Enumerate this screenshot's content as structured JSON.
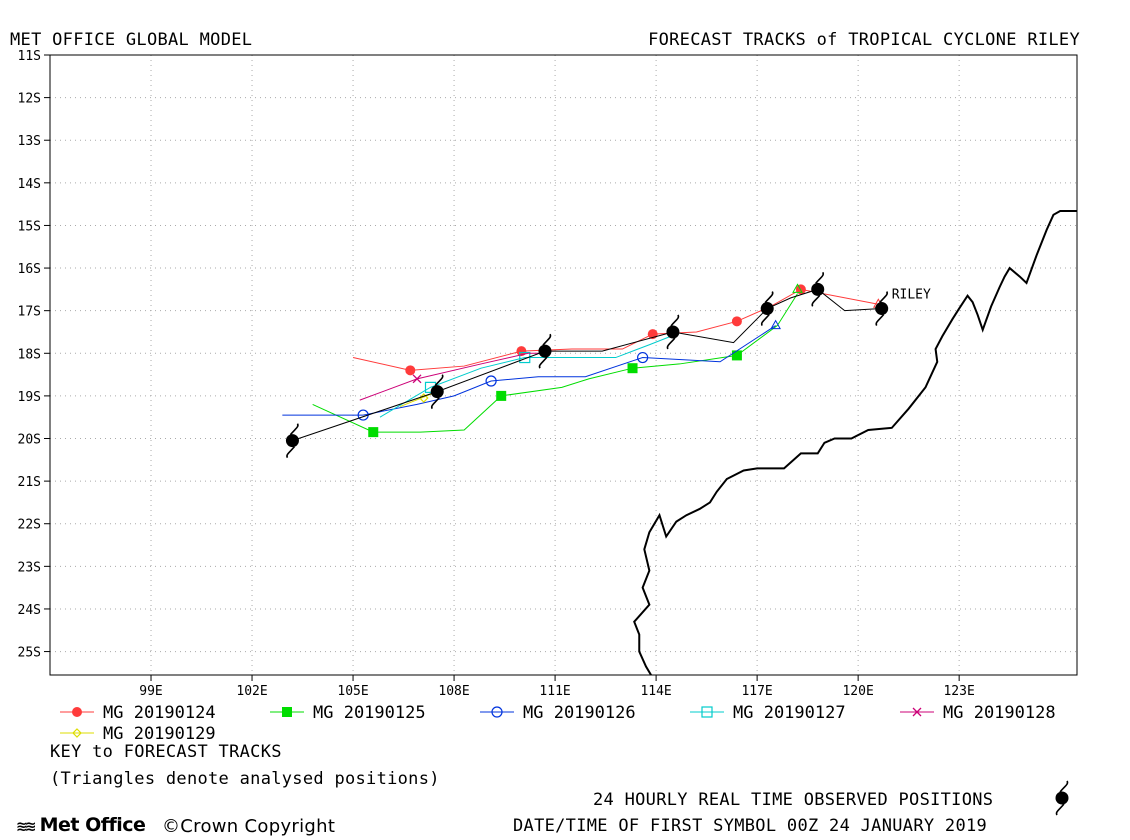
{
  "header": {
    "left_title": "MET OFFICE GLOBAL MODEL",
    "right_title": "FORECAST TRACKS of TROPICAL CYCLONE RILEY"
  },
  "map": {
    "lon_range": [
      96,
      126.5
    ],
    "lat_range": [
      -25.55,
      -11
    ],
    "lon_ticks": [
      {
        "value": 99,
        "label": "99E"
      },
      {
        "value": 102,
        "label": "102E"
      },
      {
        "value": 105,
        "label": "105E"
      },
      {
        "value": 108,
        "label": "108E"
      },
      {
        "value": 111,
        "label": "111E"
      },
      {
        "value": 114,
        "label": "114E"
      },
      {
        "value": 117,
        "label": "117E"
      },
      {
        "value": 120,
        "label": "120E"
      },
      {
        "value": 123,
        "label": "123E"
      }
    ],
    "lat_ticks": [
      {
        "value": -11,
        "label": "11S"
      },
      {
        "value": -12,
        "label": "12S"
      },
      {
        "value": -13,
        "label": "13S"
      },
      {
        "value": -14,
        "label": "14S"
      },
      {
        "value": -15,
        "label": "15S"
      },
      {
        "value": -16,
        "label": "16S"
      },
      {
        "value": -17,
        "label": "17S"
      },
      {
        "value": -18,
        "label": "18S"
      },
      {
        "value": -19,
        "label": "19S"
      },
      {
        "value": -20,
        "label": "20S"
      },
      {
        "value": -21,
        "label": "21S"
      },
      {
        "value": -22,
        "label": "22S"
      },
      {
        "value": -23,
        "label": "23S"
      },
      {
        "value": -24,
        "label": "24S"
      },
      {
        "value": -25,
        "label": "25S"
      }
    ],
    "grid": "dotted",
    "storm_label": "RILEY",
    "coastline": [
      [
        126.8,
        -14.66
      ],
      [
        126.0,
        -14.66
      ],
      [
        125.8,
        -14.75
      ],
      [
        125.6,
        -15.1
      ],
      [
        125.5,
        -15.3
      ],
      [
        125.3,
        -15.7
      ],
      [
        125.0,
        -16.35
      ],
      [
        124.8,
        -16.2
      ],
      [
        124.5,
        -16.0
      ],
      [
        124.35,
        -16.2
      ],
      [
        124.2,
        -16.45
      ],
      [
        123.95,
        -16.9
      ],
      [
        123.7,
        -17.45
      ],
      [
        123.55,
        -17.1
      ],
      [
        123.4,
        -16.8
      ],
      [
        123.25,
        -16.65
      ],
      [
        123.0,
        -16.95
      ],
      [
        122.8,
        -17.2
      ],
      [
        122.5,
        -17.6
      ],
      [
        122.3,
        -17.9
      ],
      [
        122.35,
        -18.2
      ],
      [
        122.0,
        -18.8
      ],
      [
        121.5,
        -19.3
      ],
      [
        121.0,
        -19.75
      ],
      [
        120.3,
        -19.8
      ],
      [
        119.8,
        -20.0
      ],
      [
        119.3,
        -20.0
      ],
      [
        119.0,
        -20.1
      ],
      [
        118.8,
        -20.35
      ],
      [
        118.3,
        -20.35
      ],
      [
        117.8,
        -20.7
      ],
      [
        117.0,
        -20.7
      ],
      [
        116.6,
        -20.75
      ],
      [
        116.1,
        -20.95
      ],
      [
        115.8,
        -21.25
      ],
      [
        115.6,
        -21.5
      ],
      [
        115.3,
        -21.65
      ],
      [
        114.9,
        -21.8
      ],
      [
        114.6,
        -21.95
      ],
      [
        114.3,
        -22.3
      ],
      [
        114.1,
        -21.8
      ],
      [
        113.8,
        -22.2
      ],
      [
        113.65,
        -22.6
      ],
      [
        113.8,
        -23.1
      ],
      [
        113.6,
        -23.5
      ],
      [
        113.8,
        -23.9
      ],
      [
        113.35,
        -24.3
      ],
      [
        113.5,
        -24.6
      ],
      [
        113.5,
        -25.0
      ],
      [
        113.7,
        -25.35
      ],
      [
        113.85,
        -25.55
      ]
    ]
  },
  "chart_data": {
    "type": "map-tracks",
    "x": "longitude (E)",
    "y": "latitude (S as negative)",
    "series": [
      {
        "name": "MG 20190124",
        "color": "#ff3b3b",
        "marker": "filled-circle",
        "points": [
          [
            105.0,
            -18.1
          ],
          [
            106.7,
            -18.4
          ],
          [
            108.3,
            -18.3
          ],
          [
            110.0,
            -17.95
          ],
          [
            111.5,
            -17.9
          ],
          [
            113.0,
            -17.9
          ],
          [
            113.9,
            -17.55
          ],
          [
            115.2,
            -17.5
          ],
          [
            116.4,
            -17.25
          ],
          [
            117.4,
            -16.9
          ],
          [
            118.3,
            -16.5
          ],
          [
            120.6,
            -16.85
          ]
        ],
        "markers": [
          [
            106.7,
            -18.4
          ],
          [
            110.0,
            -17.95
          ],
          [
            113.9,
            -17.55
          ],
          [
            116.4,
            -17.25
          ],
          [
            118.3,
            -16.5
          ]
        ]
      },
      {
        "name": "MG 20190125",
        "color": "#00dd00",
        "marker": "filled-square",
        "points": [
          [
            103.8,
            -19.2
          ],
          [
            105.6,
            -19.85
          ],
          [
            107.0,
            -19.85
          ],
          [
            108.3,
            -19.8
          ],
          [
            109.4,
            -19.0
          ],
          [
            111.2,
            -18.8
          ],
          [
            112.0,
            -18.6
          ],
          [
            113.3,
            -18.35
          ],
          [
            114.7,
            -18.25
          ],
          [
            116.4,
            -18.05
          ],
          [
            117.6,
            -17.35
          ],
          [
            118.2,
            -16.6
          ]
        ],
        "markers": [
          [
            105.6,
            -19.85
          ],
          [
            109.4,
            -19.0
          ],
          [
            113.3,
            -18.35
          ],
          [
            116.4,
            -18.05
          ]
        ]
      },
      {
        "name": "MG 20190126",
        "color": "#0033dd",
        "marker": "open-circle",
        "points": [
          [
            102.9,
            -19.45
          ],
          [
            105.3,
            -19.45
          ],
          [
            106.9,
            -19.2
          ],
          [
            108.0,
            -19.0
          ],
          [
            109.1,
            -18.65
          ],
          [
            110.5,
            -18.55
          ],
          [
            111.9,
            -18.55
          ],
          [
            113.6,
            -18.1
          ],
          [
            115.9,
            -18.2
          ],
          [
            117.55,
            -17.35
          ]
        ],
        "markers": [
          [
            105.3,
            -19.45
          ],
          [
            109.1,
            -18.65
          ],
          [
            113.6,
            -18.1
          ]
        ]
      },
      {
        "name": "MG 20190127",
        "color": "#00cccc",
        "marker": "open-square",
        "points": [
          [
            105.8,
            -19.5
          ],
          [
            107.3,
            -18.8
          ],
          [
            108.8,
            -18.35
          ],
          [
            110.1,
            -18.1
          ],
          [
            111.5,
            -18.1
          ],
          [
            112.8,
            -18.1
          ],
          [
            113.8,
            -17.8
          ],
          [
            114.6,
            -17.55
          ]
        ],
        "markers": [
          [
            107.3,
            -18.8
          ],
          [
            110.1,
            -18.1
          ]
        ]
      },
      {
        "name": "MG 20190128",
        "color": "#cc0077",
        "marker": "x",
        "points": [
          [
            105.2,
            -19.1
          ],
          [
            106.9,
            -18.6
          ],
          [
            108.8,
            -18.25
          ],
          [
            110.2,
            -18.0
          ],
          [
            110.7,
            -18.0
          ]
        ],
        "markers": [
          [
            106.9,
            -18.6
          ]
        ]
      },
      {
        "name": "MG 20190129",
        "color": "#dddd00",
        "marker": "open-diamond",
        "points": [
          [
            106.4,
            -19.25
          ],
          [
            107.5,
            -18.9
          ]
        ],
        "markers": [
          [
            107.1,
            -19.05
          ]
        ]
      }
    ],
    "analysed_track": {
      "color": "#000000",
      "points": [
        [
          103.2,
          -20.05
        ],
        [
          107.5,
          -18.9
        ],
        [
          110.7,
          -17.95
        ],
        [
          112.4,
          -17.95
        ],
        [
          114.5,
          -17.5
        ],
        [
          116.3,
          -17.75
        ],
        [
          117.3,
          -16.95
        ],
        [
          118.0,
          -16.7
        ],
        [
          118.8,
          -16.5
        ],
        [
          119.6,
          -17.0
        ],
        [
          120.7,
          -16.95
        ]
      ],
      "triangles": [
        [
          114.5,
          -17.5
        ],
        [
          117.55,
          -17.35
        ],
        [
          118.2,
          -16.5
        ],
        [
          120.6,
          -16.85
        ]
      ]
    },
    "observed_positions": [
      [
        103.2,
        -20.05
      ],
      [
        107.5,
        -18.9
      ],
      [
        110.7,
        -17.95
      ],
      [
        114.5,
        -17.5
      ],
      [
        117.3,
        -16.95
      ],
      [
        118.8,
        -16.5
      ],
      [
        120.7,
        -16.95
      ]
    ]
  },
  "legend": {
    "items": [
      {
        "label": "MG 20190124",
        "color": "#ff3b3b",
        "marker": "filled-circle"
      },
      {
        "label": "MG 20190125",
        "color": "#00dd00",
        "marker": "filled-square"
      },
      {
        "label": "MG 20190126",
        "color": "#0033dd",
        "marker": "open-circle"
      },
      {
        "label": "MG 20190127",
        "color": "#00cccc",
        "marker": "open-square"
      },
      {
        "label": "MG 20190128",
        "color": "#cc0077",
        "marker": "x"
      },
      {
        "label": "MG 20190129",
        "color": "#dddd00",
        "marker": "open-diamond"
      }
    ]
  },
  "footer": {
    "key_title": "KEY to FORECAST TRACKS",
    "key_note": "(Triangles denote analysed positions)",
    "observed_note": "24 HOURLY REAL TIME OBSERVED POSITIONS",
    "date_note": "DATE/TIME OF FIRST SYMBOL 00Z 24 JANUARY 2019",
    "logo_text": "Met Office",
    "copyright": "©Crown Copyright"
  }
}
